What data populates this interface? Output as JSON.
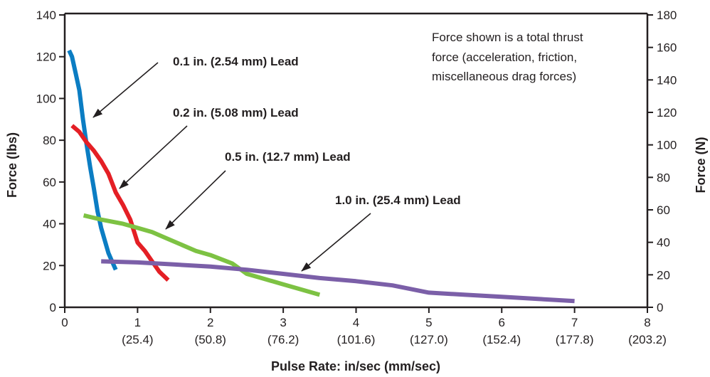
{
  "chart_data": {
    "type": "line",
    "title": "",
    "xlabel": "Pulse Rate: in/sec (mm/sec)",
    "ylabel": "Force (lbs)",
    "y2label": "Force (N)",
    "xlim": [
      0,
      8
    ],
    "ylim": [
      0,
      140
    ],
    "y2lim": [
      0,
      180
    ],
    "grid": false,
    "x_ticks": [
      {
        "value": 0,
        "label": "0",
        "sublabel": ""
      },
      {
        "value": 1,
        "label": "1",
        "sublabel": "(25.4)"
      },
      {
        "value": 2,
        "label": "2",
        "sublabel": "(50.8)"
      },
      {
        "value": 3,
        "label": "3",
        "sublabel": "(76.2)"
      },
      {
        "value": 4,
        "label": "4",
        "sublabel": "(101.6)"
      },
      {
        "value": 5,
        "label": "5",
        "sublabel": "(127.0)"
      },
      {
        "value": 6,
        "label": "6",
        "sublabel": "(152.4)"
      },
      {
        "value": 7,
        "label": "7",
        "sublabel": "(177.8)"
      },
      {
        "value": 8,
        "label": "8",
        "sublabel": "(203.2)"
      }
    ],
    "y_ticks": [
      0,
      20,
      40,
      60,
      80,
      100,
      120,
      140
    ],
    "y2_ticks": [
      0,
      20,
      40,
      60,
      80,
      100,
      120,
      140,
      160,
      180
    ],
    "note": [
      "Force shown is a total thrust",
      "force (acceleration, friction,",
      "miscellaneous drag forces)"
    ],
    "series": [
      {
        "name": "0.1 in. (2.54 mm) Lead",
        "color": "#0b7dc3",
        "x": [
          0.06,
          0.1,
          0.15,
          0.2,
          0.25,
          0.3,
          0.35,
          0.4,
          0.45,
          0.5,
          0.55,
          0.6,
          0.65,
          0.7
        ],
        "y": [
          123,
          120,
          112,
          104,
          90,
          78,
          67,
          57,
          46,
          38,
          32,
          26,
          22,
          18
        ]
      },
      {
        "name": "0.2 in. (5.08 mm) Lead",
        "color": "#e41f25",
        "x": [
          0.1,
          0.2,
          0.3,
          0.4,
          0.5,
          0.6,
          0.7,
          0.8,
          0.9,
          1.0,
          1.1,
          1.2,
          1.3,
          1.42
        ],
        "y": [
          87,
          84,
          79,
          75,
          70,
          64,
          55,
          49,
          42,
          31,
          27,
          22,
          17,
          13
        ]
      },
      {
        "name": "0.5 in. (12.7 mm) Lead",
        "color": "#7dc243",
        "x": [
          0.26,
          0.5,
          0.8,
          1.0,
          1.2,
          1.4,
          1.6,
          1.8,
          2.0,
          2.3,
          2.5,
          2.7,
          3.0,
          3.5
        ],
        "y": [
          44,
          42,
          40,
          38,
          36,
          33,
          30,
          27,
          25,
          21,
          16,
          14,
          11,
          6
        ]
      },
      {
        "name": "1.0 in. (25.4 mm) Lead",
        "color": "#7b5fa8",
        "x": [
          0.5,
          1.0,
          1.5,
          2.0,
          2.5,
          3.0,
          3.5,
          4.0,
          4.5,
          5.0,
          5.5,
          6.0,
          6.5,
          7.0
        ],
        "y": [
          22,
          21.5,
          20.5,
          19.5,
          18,
          16,
          14,
          12.5,
          10.5,
          7,
          6,
          5,
          4,
          3
        ]
      }
    ]
  }
}
